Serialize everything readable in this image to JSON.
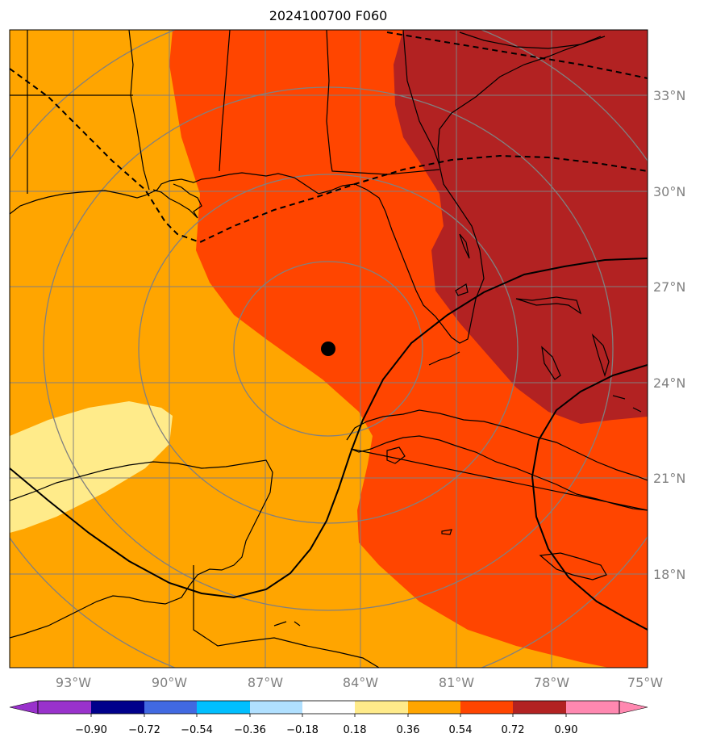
{
  "title": "2024100700 F060",
  "map": {
    "lon_range": [
      -95,
      -75
    ],
    "lat_range": [
      15,
      35
    ],
    "center_marker": {
      "lon": -85,
      "lat": 25
    },
    "range_rings_count": 4,
    "lon_ticks": [
      "93°W",
      "90°W",
      "87°W",
      "84°W",
      "81°W",
      "78°W",
      "75°W"
    ],
    "lat_ticks": [
      "33°N",
      "30°N",
      "27°N",
      "24°N",
      "21°N",
      "18°N"
    ],
    "fill_colors": {
      "pale_yellow": "#ffeb8a",
      "orange": "#ffa500",
      "red_orange": "#ff4500",
      "dark_red": "#b22222"
    }
  },
  "colorbar": {
    "labels": [
      "−0.90",
      "−0.72",
      "−0.54",
      "−0.36",
      "−0.18",
      "0.18",
      "0.36",
      "0.54",
      "0.72",
      "0.90"
    ],
    "colors": [
      "#9932cc",
      "#00008b",
      "#4169e1",
      "#00bfff",
      "#b0e0ff",
      "#ffffff",
      "#ffeb8a",
      "#ffa500",
      "#ff4500",
      "#b22222",
      "#ff88b0"
    ]
  }
}
